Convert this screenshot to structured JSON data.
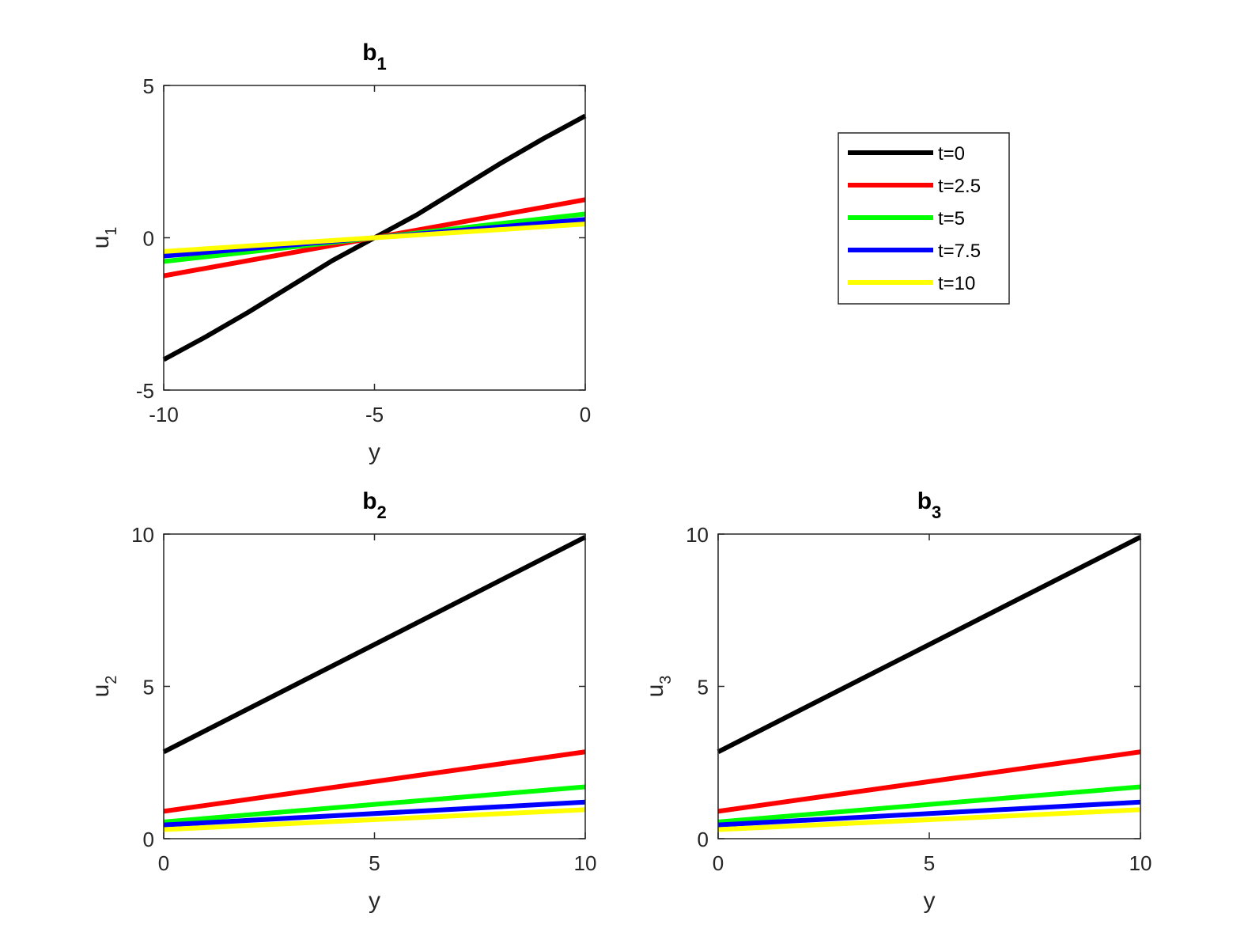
{
  "legend": {
    "entries": [
      {
        "label": "t=0",
        "color": "#000000"
      },
      {
        "label": "t=2.5",
        "color": "#ff0000"
      },
      {
        "label": "t=5",
        "color": "#00ff00"
      },
      {
        "label": "t=7.5",
        "color": "#0000ff"
      },
      {
        "label": "t=10",
        "color": "#ffff00"
      }
    ]
  },
  "chart_data": [
    {
      "type": "line",
      "title": "b",
      "title_sub": "1",
      "xlabel": "y",
      "ylabel": "u",
      "ylabel_sub": "1",
      "xlim": [
        -10,
        0
      ],
      "ylim": [
        -5,
        5
      ],
      "xticks": [
        -10,
        -5,
        0
      ],
      "xtick_labels": [
        "-10",
        "-5",
        "0"
      ],
      "yticks": [
        -5,
        0,
        5
      ],
      "ytick_labels": [
        "-5",
        "0",
        "5"
      ],
      "series": [
        {
          "name": "t=0",
          "color": "#000000",
          "x": [
            -10,
            -9,
            -8,
            -7,
            -6,
            -5,
            -4,
            -3,
            -2,
            -1,
            0
          ],
          "y": [
            -4.0,
            -3.25,
            -2.45,
            -1.6,
            -0.75,
            0.0,
            0.75,
            1.6,
            2.45,
            3.25,
            4.0
          ]
        },
        {
          "name": "t=2.5",
          "color": "#ff0000",
          "x": [
            -10,
            0
          ],
          "y": [
            -1.25,
            1.25
          ]
        },
        {
          "name": "t=5",
          "color": "#00ff00",
          "x": [
            -10,
            0
          ],
          "y": [
            -0.78,
            0.78
          ]
        },
        {
          "name": "t=7.5",
          "color": "#0000ff",
          "x": [
            -10,
            0
          ],
          "y": [
            -0.6,
            0.6
          ]
        },
        {
          "name": "t=10",
          "color": "#ffff00",
          "x": [
            -10,
            0
          ],
          "y": [
            -0.45,
            0.45
          ]
        }
      ]
    },
    {
      "type": "line",
      "title": "b",
      "title_sub": "2",
      "xlabel": "y",
      "ylabel": "u",
      "ylabel_sub": "2",
      "xlim": [
        0,
        10
      ],
      "ylim": [
        0,
        10
      ],
      "xticks": [
        0,
        5,
        10
      ],
      "xtick_labels": [
        "0",
        "5",
        "10"
      ],
      "yticks": [
        0,
        5,
        10
      ],
      "ytick_labels": [
        "0",
        "5",
        "10"
      ],
      "series": [
        {
          "name": "t=0",
          "color": "#000000",
          "x": [
            0,
            10
          ],
          "y": [
            2.85,
            9.9
          ]
        },
        {
          "name": "t=2.5",
          "color": "#ff0000",
          "x": [
            0,
            10
          ],
          "y": [
            0.9,
            2.85
          ]
        },
        {
          "name": "t=5",
          "color": "#00ff00",
          "x": [
            0,
            10
          ],
          "y": [
            0.55,
            1.7
          ]
        },
        {
          "name": "t=7.5",
          "color": "#0000ff",
          "x": [
            0,
            10
          ],
          "y": [
            0.45,
            1.2
          ]
        },
        {
          "name": "t=10",
          "color": "#ffff00",
          "x": [
            0,
            10
          ],
          "y": [
            0.3,
            0.95
          ]
        }
      ]
    },
    {
      "type": "line",
      "title": "b",
      "title_sub": "3",
      "xlabel": "y",
      "ylabel": "u",
      "ylabel_sub": "3",
      "xlim": [
        0,
        10
      ],
      "ylim": [
        0,
        10
      ],
      "xticks": [
        0,
        5,
        10
      ],
      "xtick_labels": [
        "0",
        "5",
        "10"
      ],
      "yticks": [
        0,
        5,
        10
      ],
      "ytick_labels": [
        "0",
        "5",
        "10"
      ],
      "series": [
        {
          "name": "t=0",
          "color": "#000000",
          "x": [
            0,
            10
          ],
          "y": [
            2.85,
            9.9
          ]
        },
        {
          "name": "t=2.5",
          "color": "#ff0000",
          "x": [
            0,
            10
          ],
          "y": [
            0.9,
            2.85
          ]
        },
        {
          "name": "t=5",
          "color": "#00ff00",
          "x": [
            0,
            10
          ],
          "y": [
            0.55,
            1.7
          ]
        },
        {
          "name": "t=7.5",
          "color": "#0000ff",
          "x": [
            0,
            10
          ],
          "y": [
            0.45,
            1.2
          ]
        },
        {
          "name": "t=10",
          "color": "#ffff00",
          "x": [
            0,
            10
          ],
          "y": [
            0.3,
            0.95
          ]
        }
      ]
    }
  ]
}
